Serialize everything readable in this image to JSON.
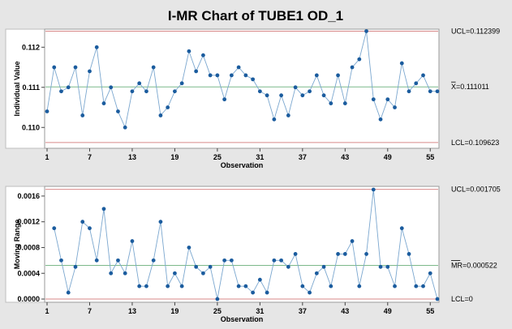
{
  "chart_data": {
    "type": "line",
    "title": "I-MR Chart of TUBE1 OD_1",
    "xlabel": "Observation",
    "x_ticks": [
      1,
      7,
      13,
      19,
      25,
      31,
      37,
      43,
      49,
      55
    ],
    "x_range": [
      1,
      56
    ],
    "colors": {
      "line": "#7ba7cf",
      "point": "#1b5c9e",
      "limit": "#d88a8a",
      "center": "#7cb98a",
      "plot_bg": "#ffffff",
      "page_bg": "#e6e6e6"
    },
    "charts": [
      {
        "name": "individual",
        "ylabel": "Individual Value",
        "ylim": [
          0.10948,
          0.11245
        ],
        "y_ticks": [
          {
            "value": 0.11,
            "label": "0.110"
          },
          {
            "value": 0.111,
            "label": "0.111"
          },
          {
            "value": 0.112,
            "label": "0.112"
          }
        ],
        "ucl": {
          "value": 0.112399,
          "label": "UCL=0.112399"
        },
        "center": {
          "value": 0.111011,
          "label_prefix": "X",
          "label_suffix": "=0.111011",
          "bar": true
        },
        "lcl": {
          "value": 0.109623,
          "label": "LCL=0.109623"
        },
        "values": [
          0.1104,
          0.1115,
          0.1109,
          0.111,
          0.1115,
          0.1103,
          0.1114,
          0.112,
          0.1106,
          0.111,
          0.1104,
          0.11,
          0.1109,
          0.1111,
          0.1109,
          0.1115,
          0.1103,
          0.1105,
          0.1109,
          0.1111,
          0.1119,
          0.1114,
          0.1118,
          0.1113,
          0.1113,
          0.1107,
          0.1113,
          0.1115,
          0.1113,
          0.1112,
          0.1109,
          0.1108,
          0.1102,
          0.1108,
          0.1103,
          0.111,
          0.1108,
          0.1109,
          0.1113,
          0.1108,
          0.1106,
          0.1113,
          0.1106,
          0.1115,
          0.1117,
          0.1124,
          0.1107,
          0.1102,
          0.1107,
          0.1105,
          0.1116,
          0.1109,
          0.1111,
          0.1113,
          0.1109,
          0.1109
        ]
      },
      {
        "name": "moving-range",
        "ylabel": "Moving Range",
        "ylim": [
          -5e-05,
          0.00175
        ],
        "y_ticks": [
          {
            "value": 0.0,
            "label": "0.0000"
          },
          {
            "value": 0.0004,
            "label": "0.0004"
          },
          {
            "value": 0.0008,
            "label": "0.0008"
          },
          {
            "value": 0.0012,
            "label": "0.0012"
          },
          {
            "value": 0.0016,
            "label": "0.0016"
          }
        ],
        "ucl": {
          "value": 0.001705,
          "label": "UCL=0.001705"
        },
        "center": {
          "value": 0.000522,
          "label_prefix": "MR",
          "label_suffix": "=0.000522",
          "bar": true
        },
        "lcl": {
          "value": 0.0,
          "label": "LCL=0"
        },
        "x_start": 2,
        "values": [
          0.0011,
          0.0006,
          0.0001,
          0.0005,
          0.0012,
          0.0011,
          0.0006,
          0.0014,
          0.0004,
          0.0006,
          0.0004,
          0.0009,
          0.0002,
          0.0002,
          0.0006,
          0.0012,
          0.0002,
          0.0004,
          0.0002,
          0.0008,
          0.0005,
          0.0004,
          0.0005,
          0.0,
          0.0006,
          0.0006,
          0.0002,
          0.0002,
          0.0001,
          0.0003,
          0.0001,
          0.0006,
          0.0006,
          0.0005,
          0.0007,
          0.0002,
          0.0001,
          0.0004,
          0.0005,
          0.0002,
          0.0007,
          0.0007,
          0.0009,
          0.0002,
          0.0007,
          0.0017,
          0.0005,
          0.0005,
          0.0002,
          0.0011,
          0.0007,
          0.0002,
          0.0002,
          0.0004,
          0.0
        ]
      }
    ]
  }
}
